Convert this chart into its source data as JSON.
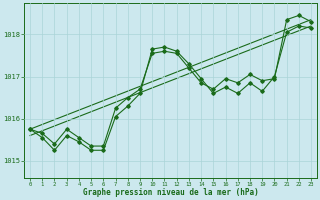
{
  "xlabel": "Graphe pression niveau de la mer (hPa)",
  "xlim": [
    -0.5,
    23.5
  ],
  "ylim": [
    1014.6,
    1018.75
  ],
  "yticks": [
    1015,
    1016,
    1017,
    1018
  ],
  "xticks": [
    0,
    1,
    2,
    3,
    4,
    5,
    6,
    7,
    8,
    9,
    10,
    11,
    12,
    13,
    14,
    15,
    16,
    17,
    18,
    19,
    20,
    21,
    22,
    23
  ],
  "bg_color": "#cce8ee",
  "grid_color": "#aad4d8",
  "line_color": "#1a6b1a",
  "series1_x": [
    0,
    1,
    2,
    3,
    4,
    5,
    6,
    7,
    8,
    9,
    10,
    11,
    12,
    13,
    14,
    15,
    16,
    17,
    18,
    19,
    20,
    21,
    22,
    23
  ],
  "series1_y": [
    1015.75,
    1015.65,
    1015.4,
    1015.75,
    1015.55,
    1015.35,
    1015.35,
    1016.25,
    1016.5,
    1016.7,
    1017.55,
    1017.6,
    1017.55,
    1017.2,
    1016.85,
    1016.7,
    1016.95,
    1016.85,
    1017.05,
    1016.9,
    1016.95,
    1018.35,
    1018.45,
    1018.3
  ],
  "series2_x": [
    0,
    1,
    2,
    3,
    4,
    5,
    6,
    7,
    8,
    9,
    10,
    11,
    12,
    13,
    14,
    15,
    16,
    17,
    18,
    19,
    20,
    21,
    22,
    23
  ],
  "series2_y": [
    1015.75,
    1015.55,
    1015.25,
    1015.6,
    1015.45,
    1015.25,
    1015.25,
    1016.05,
    1016.3,
    1016.6,
    1017.65,
    1017.7,
    1017.6,
    1017.3,
    1016.95,
    1016.6,
    1016.75,
    1016.6,
    1016.85,
    1016.65,
    1017.0,
    1018.05,
    1018.2,
    1018.15
  ],
  "series3_x": [
    0,
    23
  ],
  "series3_y": [
    1015.6,
    1018.2
  ],
  "series4_x": [
    0,
    23
  ],
  "series4_y": [
    1015.75,
    1018.35
  ]
}
